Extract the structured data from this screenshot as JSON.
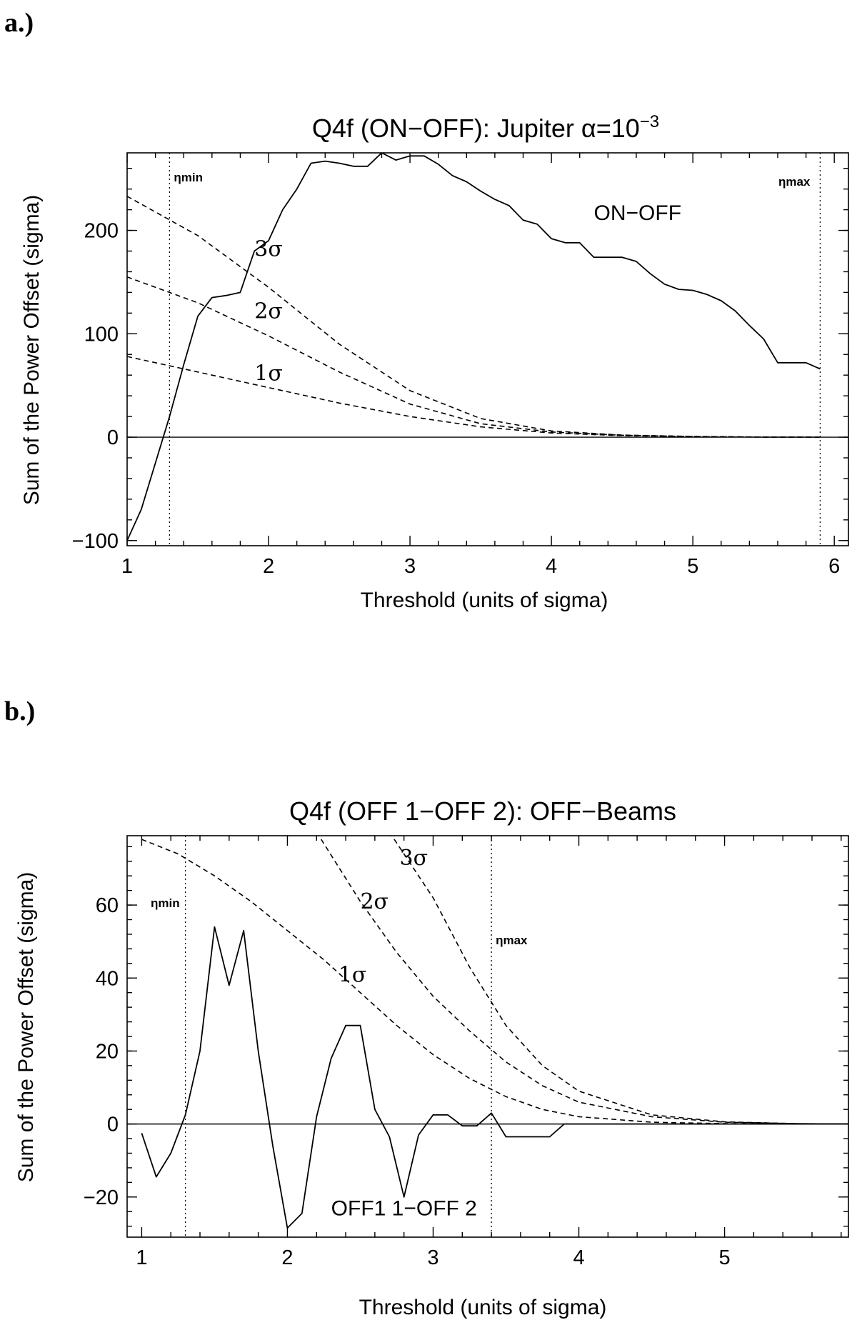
{
  "chart_data": [
    {
      "type": "line",
      "panel_label": "a.)",
      "title": "Q4f (ON−OFF): Jupiter α=10",
      "title_exponent": "−3",
      "xlabel": "Threshold (units of sigma)",
      "ylabel": "Sum of the Power Offset (sigma)",
      "xlim": [
        1,
        6.1
      ],
      "ylim": [
        -105,
        275
      ],
      "xticks": [
        1,
        2,
        3,
        4,
        5,
        6
      ],
      "yticks": [
        -100,
        0,
        100,
        200
      ],
      "tick_labels_y": [
        "−100",
        "0",
        "100",
        "200"
      ],
      "tick_labels_x": [
        "1",
        "2",
        "3",
        "4",
        "5",
        "6"
      ],
      "eta_min": {
        "label": "ηmin",
        "x": 1.3
      },
      "eta_max": {
        "label": "ηmax",
        "x": 5.9
      },
      "series": [
        {
          "name": "ON−OFF",
          "style": "solid",
          "x": [
            1.0,
            1.1,
            1.2,
            1.3,
            1.4,
            1.5,
            1.6,
            1.7,
            1.8,
            1.85,
            1.9,
            2.0,
            2.1,
            2.2,
            2.3,
            2.4,
            2.5,
            2.6,
            2.7,
            2.8,
            2.9,
            3.0,
            3.1,
            3.2,
            3.3,
            3.4,
            3.5,
            3.6,
            3.7,
            3.8,
            3.9,
            4.0,
            4.1,
            4.2,
            4.3,
            4.4,
            4.5,
            4.6,
            4.7,
            4.8,
            4.9,
            5.0,
            5.1,
            5.2,
            5.3,
            5.4,
            5.5,
            5.6,
            5.7,
            5.8,
            5.9
          ],
          "values": [
            -100,
            -70,
            -25,
            20,
            70,
            117,
            135,
            137,
            140,
            160,
            180,
            190,
            220,
            240,
            265,
            267,
            265,
            262,
            262,
            275,
            268,
            272,
            272,
            264,
            253,
            247,
            238,
            230,
            224,
            210,
            206,
            192,
            188,
            188,
            174,
            174,
            174,
            170,
            158,
            148,
            143,
            142,
            138,
            132,
            122,
            108,
            95,
            72,
            72,
            72,
            66
          ]
        },
        {
          "name": "1σ",
          "style": "dashed",
          "x": [
            1.0,
            1.5,
            2.0,
            2.5,
            3.0,
            3.5,
            4.0,
            4.5,
            5.0,
            5.5,
            5.9
          ],
          "values": [
            78,
            63,
            48,
            33,
            20,
            10,
            4,
            1.5,
            0.5,
            0.1,
            0
          ]
        },
        {
          "name": "2σ",
          "style": "dashed",
          "x": [
            1.0,
            1.5,
            2.0,
            2.5,
            3.0,
            3.5,
            4.0,
            4.5,
            5.0,
            5.5,
            5.9
          ],
          "values": [
            155,
            130,
            98,
            63,
            32,
            13,
            5,
            1.8,
            0.6,
            0.1,
            0
          ]
        },
        {
          "name": "3σ",
          "style": "dashed",
          "x": [
            1.0,
            1.5,
            2.0,
            2.5,
            3.0,
            3.5,
            4.0,
            4.5,
            5.0,
            5.5,
            5.9
          ],
          "values": [
            233,
            195,
            145,
            90,
            45,
            18,
            6,
            2,
            0.7,
            0.1,
            0
          ]
        }
      ],
      "annotations": [
        {
          "text": "ON−OFF",
          "x": 4.3,
          "y": 210
        },
        {
          "text": "3σ",
          "x": 1.9,
          "y": 175
        },
        {
          "text": "2σ",
          "x": 1.9,
          "y": 115
        },
        {
          "text": "1σ",
          "x": 1.9,
          "y": 55
        }
      ]
    },
    {
      "type": "line",
      "panel_label": "b.)",
      "title": "Q4f (OFF 1−OFF 2):  OFF−Beams",
      "xlabel": "Threshold (units of sigma)",
      "ylabel": "Sum of the Power Offset (sigma)",
      "xlim": [
        0.9,
        5.85
      ],
      "ylim": [
        -31,
        79
      ],
      "xticks": [
        1,
        2,
        3,
        4,
        5
      ],
      "yticks": [
        -20,
        0,
        20,
        40,
        60
      ],
      "tick_labels_y": [
        "−20",
        "0",
        "20",
        "40",
        "60"
      ],
      "tick_labels_x": [
        "1",
        "2",
        "3",
        "4",
        "5"
      ],
      "eta_min": {
        "label": "ηmin",
        "x": 1.3
      },
      "eta_max": {
        "label": "ηmax",
        "x": 3.4
      },
      "series": [
        {
          "name": "OFF1 1−OFF 2",
          "style": "solid",
          "x": [
            1.0,
            1.1,
            1.2,
            1.3,
            1.4,
            1.5,
            1.6,
            1.7,
            1.8,
            1.9,
            2.0,
            2.1,
            2.2,
            2.3,
            2.4,
            2.5,
            2.6,
            2.7,
            2.8,
            2.9,
            3.0,
            3.1,
            3.2,
            3.3,
            3.4,
            3.5,
            3.6,
            3.7,
            3.8,
            3.9,
            4.0,
            5.85
          ],
          "values": [
            -2.5,
            -14.5,
            -8,
            2.5,
            20,
            54,
            38,
            53,
            20,
            -6,
            -28.5,
            -24.5,
            2,
            18,
            27,
            27,
            4,
            -3.5,
            -20,
            -3,
            2.5,
            2.5,
            -0.5,
            -0.5,
            3,
            -3.5,
            -3.5,
            -3.5,
            -3.5,
            0,
            0,
            0
          ]
        },
        {
          "name": "1σ",
          "style": "dashed",
          "x": [
            1.0,
            1.25,
            1.5,
            1.75,
            2.0,
            2.25,
            2.5,
            2.75,
            3.0,
            3.25,
            3.5,
            3.75,
            4.0,
            4.5,
            5.0,
            5.5,
            5.85
          ],
          "values": [
            78,
            74,
            68,
            61,
            53,
            45,
            36,
            27,
            19,
            12.5,
            7.5,
            4,
            2,
            0.5,
            0.1,
            0,
            0
          ]
        },
        {
          "name": "2σ",
          "style": "dashed",
          "x": [
            2.2,
            2.5,
            2.75,
            3.0,
            3.25,
            3.5,
            3.75,
            4.0,
            4.5,
            5.0,
            5.5,
            5.85
          ],
          "values": [
            80,
            61,
            47,
            35,
            25.5,
            17,
            10.5,
            6,
            2,
            0.5,
            0.1,
            0
          ]
        },
        {
          "name": "3σ",
          "style": "dashed",
          "x": [
            2.7,
            3.0,
            3.25,
            3.5,
            3.75,
            4.0,
            4.5,
            5.0,
            5.5,
            5.85
          ],
          "values": [
            80,
            62,
            43,
            27,
            16,
            9,
            2.5,
            0.6,
            0.1,
            0
          ]
        }
      ],
      "annotations": [
        {
          "text": "3σ",
          "x": 2.77,
          "y": 71
        },
        {
          "text": "2σ",
          "x": 2.5,
          "y": 59
        },
        {
          "text": "1σ",
          "x": 2.35,
          "y": 39
        },
        {
          "text": "OFF1 1−OFF 2",
          "x": 2.3,
          "y": -25
        }
      ]
    }
  ]
}
